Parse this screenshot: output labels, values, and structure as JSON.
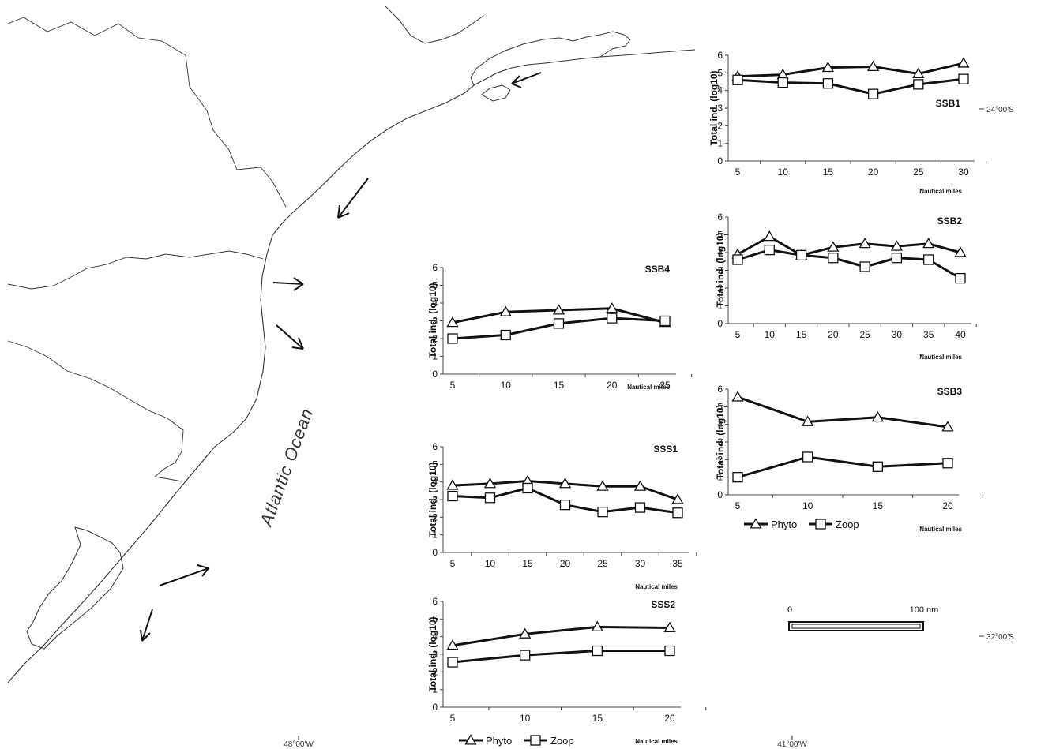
{
  "map": {
    "ocean_label": "Atlantic Ocean",
    "coords": {
      "lat_top": "24°00'S",
      "lat_bottom": "32°00'S",
      "lon_left": "48°00'W",
      "lon_right": "41°00'W"
    },
    "scale_bar": {
      "start": "0",
      "end": "100 nm"
    }
  },
  "legend": {
    "phyto": "Phyto",
    "zoop": "Zoop"
  },
  "colors": {
    "line": "#111111",
    "marker_fill": "#ffffff",
    "map_line": "#333333"
  },
  "chart_data": [
    {
      "type": "line",
      "title": "SSB1",
      "ylabel": "Total ind. (log10)",
      "xlabel": "Nautical miles",
      "categories": [
        "5",
        "10",
        "15",
        "20",
        "25",
        "30"
      ],
      "ylim": [
        0,
        6
      ],
      "yticks": [
        0,
        1,
        2,
        3,
        4,
        5,
        6
      ],
      "series": [
        {
          "name": "Phyto",
          "marker": "triangle",
          "values": [
            4.8,
            4.9,
            5.3,
            5.35,
            4.95,
            5.55
          ]
        },
        {
          "name": "Zoop",
          "marker": "square",
          "values": [
            4.6,
            4.45,
            4.4,
            3.8,
            4.35,
            4.65
          ]
        }
      ]
    },
    {
      "type": "line",
      "title": "SSB2",
      "ylabel": "Total ind. (log10)",
      "xlabel": "Nautical miles",
      "categories": [
        "5",
        "10",
        "15",
        "20",
        "25",
        "30",
        "35",
        "40"
      ],
      "ylim": [
        0,
        6
      ],
      "yticks": [
        0,
        1,
        2,
        3,
        4,
        5,
        6
      ],
      "series": [
        {
          "name": "Phyto",
          "marker": "triangle",
          "values": [
            3.9,
            4.9,
            3.85,
            4.3,
            4.5,
            4.35,
            4.5,
            4.0
          ]
        },
        {
          "name": "Zoop",
          "marker": "square",
          "values": [
            3.6,
            4.15,
            3.85,
            3.7,
            3.2,
            3.7,
            3.6,
            2.55
          ]
        }
      ]
    },
    {
      "type": "line",
      "title": "SSB3",
      "ylabel": "Total ind. (log10)",
      "xlabel": "Nautical miles",
      "categories": [
        "5",
        "10",
        "15",
        "20"
      ],
      "ylim": [
        0,
        6
      ],
      "yticks": [
        0,
        1,
        2,
        3,
        4,
        5,
        6
      ],
      "show_legend": true,
      "series": [
        {
          "name": "Phyto",
          "marker": "triangle",
          "values": [
            5.55,
            4.15,
            4.4,
            3.85
          ]
        },
        {
          "name": "Zoop",
          "marker": "square",
          "values": [
            1.0,
            2.15,
            1.6,
            1.8
          ]
        }
      ]
    },
    {
      "type": "line",
      "title": "SSB4",
      "ylabel": "Total ind. (log10)",
      "xlabel": "Nautical miles",
      "categories": [
        "5",
        "10",
        "15",
        "20",
        "25"
      ],
      "ylim": [
        0,
        6
      ],
      "yticks": [
        0,
        1,
        2,
        3,
        4,
        5,
        6
      ],
      "series": [
        {
          "name": "Phyto",
          "marker": "triangle",
          "values": [
            2.9,
            3.5,
            3.6,
            3.7,
            2.9
          ]
        },
        {
          "name": "Zoop",
          "marker": "square",
          "values": [
            2.0,
            2.2,
            2.85,
            3.15,
            3.0
          ]
        }
      ]
    },
    {
      "type": "line",
      "title": "SSS1",
      "ylabel": "Total ind. (log10)",
      "xlabel": "Nautical miles",
      "categories": [
        "5",
        "10",
        "15",
        "20",
        "25",
        "30",
        "35"
      ],
      "ylim": [
        0,
        6
      ],
      "yticks": [
        0,
        1,
        2,
        3,
        4,
        5,
        6
      ],
      "series": [
        {
          "name": "Phyto",
          "marker": "triangle",
          "values": [
            3.8,
            3.9,
            4.05,
            3.9,
            3.75,
            3.75,
            3.0
          ]
        },
        {
          "name": "Zoop",
          "marker": "square",
          "values": [
            3.2,
            3.1,
            3.65,
            2.7,
            2.3,
            2.55,
            2.25
          ]
        }
      ]
    },
    {
      "type": "line",
      "title": "SSS2",
      "ylabel": "Total ind. (log10)",
      "xlabel": "Nautical miles",
      "categories": [
        "5",
        "10",
        "15",
        "20"
      ],
      "ylim": [
        0,
        6
      ],
      "yticks": [
        0,
        1,
        2,
        3,
        4,
        5,
        6
      ],
      "show_legend": true,
      "series": [
        {
          "name": "Phyto",
          "marker": "triangle",
          "values": [
            3.5,
            4.15,
            4.55,
            4.5
          ]
        },
        {
          "name": "Zoop",
          "marker": "square",
          "values": [
            2.55,
            2.95,
            3.2,
            3.2
          ]
        }
      ]
    }
  ]
}
